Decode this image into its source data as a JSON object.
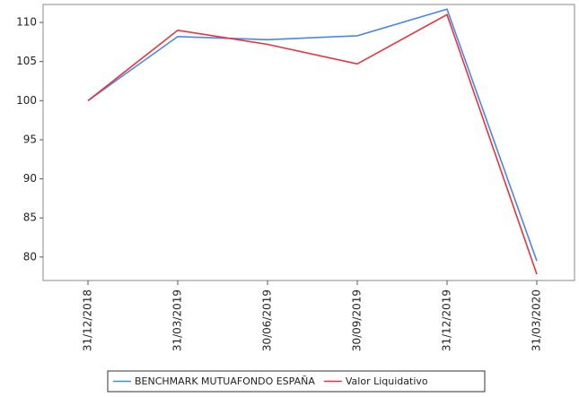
{
  "chart_data": {
    "type": "line",
    "categories": [
      "31/12/2018",
      "31/03/2019",
      "30/06/2019",
      "30/09/2019",
      "31/12/2019",
      "31/03/2020"
    ],
    "series": [
      {
        "name": "BENCHMARK MUTUAFONDO ESPAÑA",
        "color": "#4a86e8",
        "values": [
          100,
          108.2,
          107.8,
          108.3,
          111.7,
          79.5
        ]
      },
      {
        "name": "Valor Liquidativo",
        "color": "#e8333c",
        "values": [
          100,
          109,
          107.2,
          104.7,
          111,
          77.8
        ]
      }
    ],
    "ylim": [
      77,
      112.3
    ],
    "yticks": [
      80,
      85,
      90,
      95,
      100,
      105,
      110
    ],
    "legend": "bottom"
  }
}
